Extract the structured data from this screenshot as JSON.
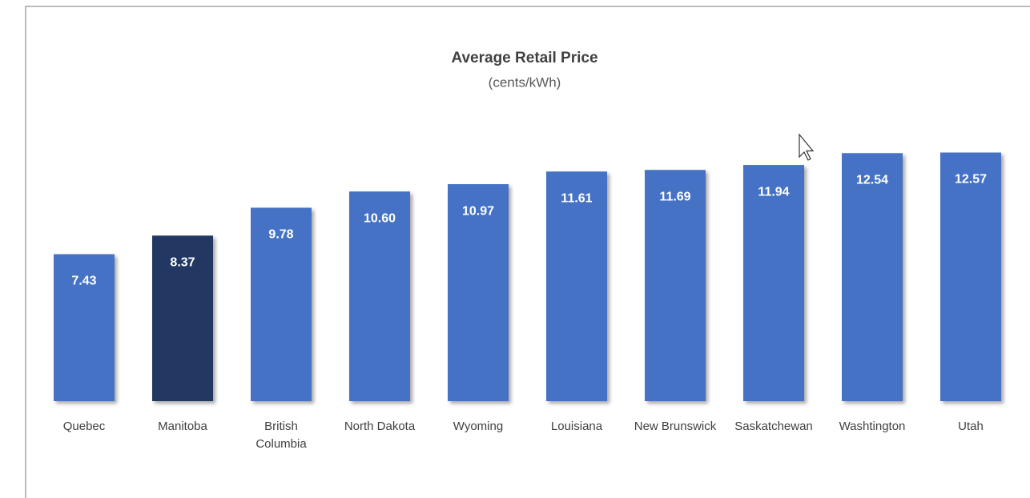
{
  "chart_data": {
    "type": "bar",
    "title": "Average Retail Price",
    "subtitle": "(cents/kWh)",
    "categories": [
      "Quebec",
      "Manitoba",
      "British Columbia",
      "North Dakota",
      "Wyoming",
      "Louisiana",
      "New Brunswick",
      "Saskatchewan",
      "Washtington",
      "Utah"
    ],
    "values": [
      7.43,
      8.37,
      9.78,
      10.6,
      10.97,
      11.61,
      11.69,
      11.94,
      12.54,
      12.57
    ],
    "value_labels": [
      "7.43",
      "8.37",
      "9.78",
      "10.60",
      "10.97",
      "11.61",
      "11.69",
      "11.94",
      "12.54",
      "12.57"
    ],
    "colors": [
      "#4472c4",
      "#203864",
      "#4472c4",
      "#4472c4",
      "#4472c4",
      "#4472c4",
      "#4472c4",
      "#4472c4",
      "#4472c4",
      "#4472c4"
    ],
    "ylim": [
      0,
      20
    ]
  }
}
